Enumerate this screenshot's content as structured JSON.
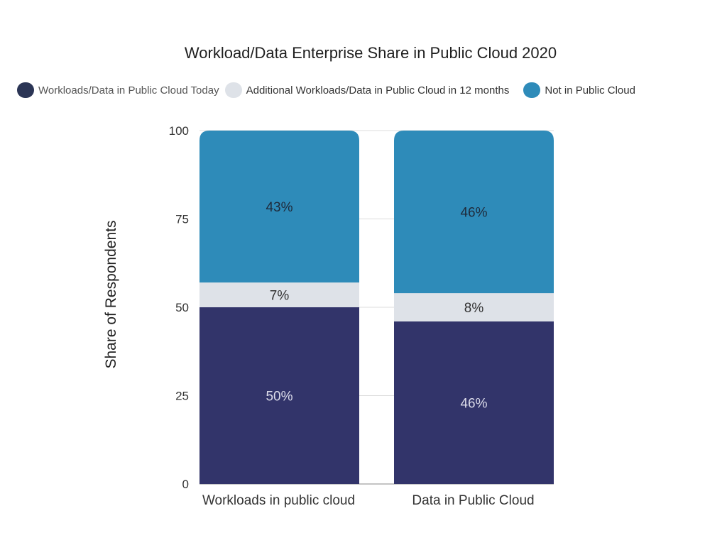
{
  "chart_data": {
    "type": "bar",
    "stacked": true,
    "title": "Workload/Data Enterprise Share in Public Cloud 2020",
    "xlabel": "",
    "ylabel": "Share of Respondents",
    "ylim": [
      0,
      100
    ],
    "yticks": [
      0,
      25,
      50,
      75,
      100
    ],
    "grid": true,
    "legend_position": "top",
    "categories": [
      "Workloads in public cloud",
      "Data in Public Cloud"
    ],
    "series": [
      {
        "name": "Workloads/Data in Public Cloud Today",
        "values": [
          50,
          46
        ],
        "labels": [
          "50%",
          "46%"
        ],
        "color": "#32346a",
        "label_color": "#dcdcea"
      },
      {
        "name": "Additional Workloads/Data in Public Cloud in 12 months",
        "values": [
          7,
          8
        ],
        "labels": [
          "7%",
          "8%"
        ],
        "color": "#dee2e8",
        "label_color": "#333333"
      },
      {
        "name": "Not in Public Cloud",
        "values": [
          43,
          46
        ],
        "labels": [
          "43%",
          "46%"
        ],
        "color": "#2e8bb9",
        "label_color": "#1f2a3a"
      }
    ]
  },
  "legend_swatch_colors": [
    "#2b3555",
    "#dee2e8",
    "#2e8bb9"
  ]
}
